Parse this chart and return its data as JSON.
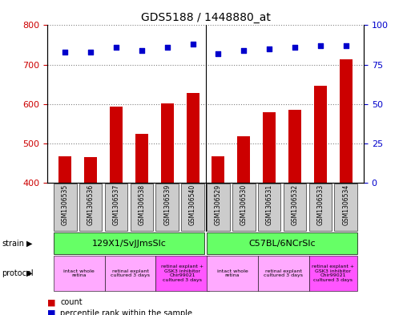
{
  "title": "GDS5188 / 1448880_at",
  "samples": [
    "GSM1306535",
    "GSM1306536",
    "GSM1306537",
    "GSM1306538",
    "GSM1306539",
    "GSM1306540",
    "GSM1306529",
    "GSM1306530",
    "GSM1306531",
    "GSM1306532",
    "GSM1306533",
    "GSM1306534"
  ],
  "counts": [
    467,
    466,
    594,
    524,
    602,
    628,
    468,
    518,
    578,
    585,
    647,
    714
  ],
  "percentiles": [
    83,
    83,
    86,
    84,
    86,
    88,
    82,
    84,
    85,
    86,
    87,
    87
  ],
  "ylim_left": [
    400,
    800
  ],
  "ylim_right": [
    0,
    100
  ],
  "yticks_left": [
    400,
    500,
    600,
    700,
    800
  ],
  "yticks_right": [
    0,
    25,
    50,
    75,
    100
  ],
  "bar_color": "#cc0000",
  "dot_color": "#0000cc",
  "strain_labels": [
    "129X1/SvJJmsSlc",
    "C57BL/6NCrSlc"
  ],
  "strain_color": "#66ff66",
  "protocol_labels": [
    "intact whole\nretina",
    "retinal explant\ncultured 3 days",
    "retinal explant +\nGSK3 inhibitor\nChir99021\ncultured 3 days"
  ],
  "protocol_color_light": "#ffaaff",
  "protocol_color_dark": "#ff55ff",
  "tick_label_color_left": "#cc0000",
  "tick_label_color_right": "#0000cc",
  "background_color": "#ffffff",
  "legend_count_label": "count",
  "legend_percentile_label": "percentile rank within the sample",
  "xticklabel_bg": "#cccccc"
}
